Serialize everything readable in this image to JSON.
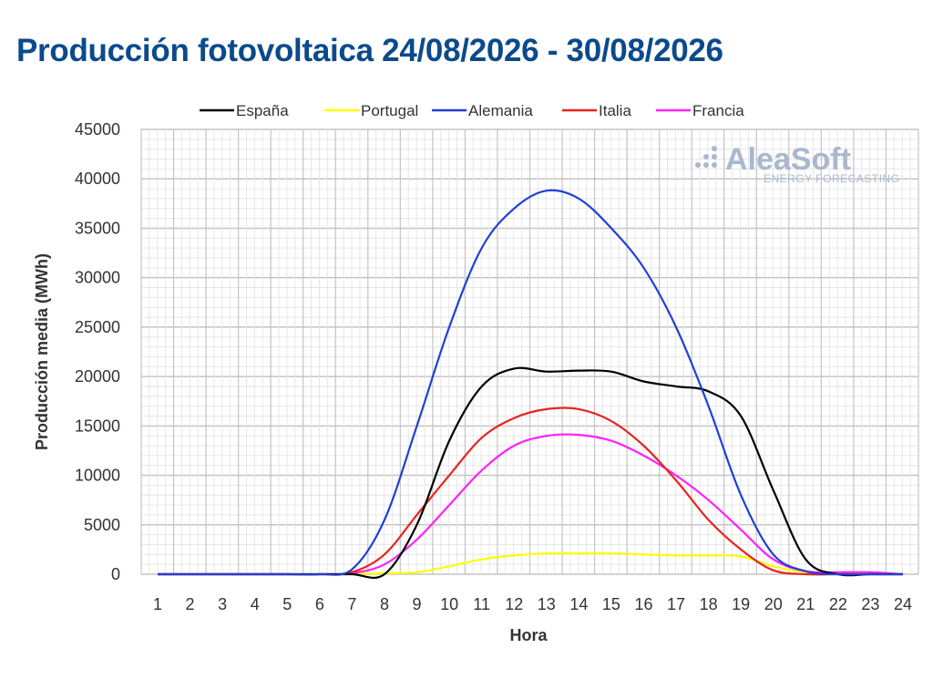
{
  "title": "Producción fotovoltaica 24/08/2026 - 30/08/2026",
  "logo": {
    "name": "AleaSoft",
    "tagline": "ENERGY FORECASTING"
  },
  "colors": {
    "title": "#0b4a8b",
    "grid": "#d0d0d0",
    "axis_text": "#333333"
  },
  "chart_data": {
    "type": "line",
    "xlabel": "Hora",
    "ylabel": "Producción media (MWh)",
    "ylim": [
      0,
      45000
    ],
    "xlim": [
      1,
      24
    ],
    "grid": true,
    "legend_position": "top",
    "x": [
      1,
      2,
      3,
      4,
      5,
      6,
      7,
      8,
      9,
      10,
      11,
      12,
      13,
      14,
      15,
      16,
      17,
      18,
      19,
      20,
      21,
      22,
      23,
      24
    ],
    "series": [
      {
        "name": "España",
        "color": "#000000",
        "values": [
          0,
          0,
          0,
          0,
          0,
          0,
          0,
          0,
          5000,
          13500,
          19000,
          20800,
          20500,
          20600,
          20500,
          19500,
          19000,
          18500,
          16000,
          8500,
          1500,
          0,
          0,
          0
        ]
      },
      {
        "name": "Portugal",
        "color": "#ffff00",
        "values": [
          0,
          0,
          0,
          0,
          0,
          0,
          0,
          100,
          200,
          800,
          1500,
          1900,
          2100,
          2100,
          2100,
          2000,
          1900,
          1900,
          1800,
          800,
          200,
          100,
          100,
          0
        ]
      },
      {
        "name": "Alemania",
        "color": "#1f3fd9",
        "values": [
          0,
          0,
          0,
          0,
          0,
          0,
          500,
          5500,
          15000,
          25000,
          33000,
          37000,
          38800,
          38000,
          35000,
          31000,
          25000,
          17000,
          8000,
          2000,
          300,
          0,
          0,
          0
        ]
      },
      {
        "name": "Italia",
        "color": "#e8231f",
        "values": [
          0,
          0,
          0,
          0,
          0,
          0,
          200,
          2000,
          6000,
          10000,
          13800,
          15800,
          16700,
          16700,
          15500,
          13000,
          9500,
          5500,
          2500,
          400,
          0,
          0,
          0,
          0
        ]
      },
      {
        "name": "Francia",
        "color": "#ff20ff",
        "values": [
          0,
          0,
          0,
          0,
          0,
          0,
          100,
          1000,
          3500,
          7000,
          10500,
          13000,
          14000,
          14100,
          13500,
          12000,
          10000,
          7500,
          4500,
          1500,
          300,
          200,
          200,
          0
        ]
      }
    ]
  }
}
